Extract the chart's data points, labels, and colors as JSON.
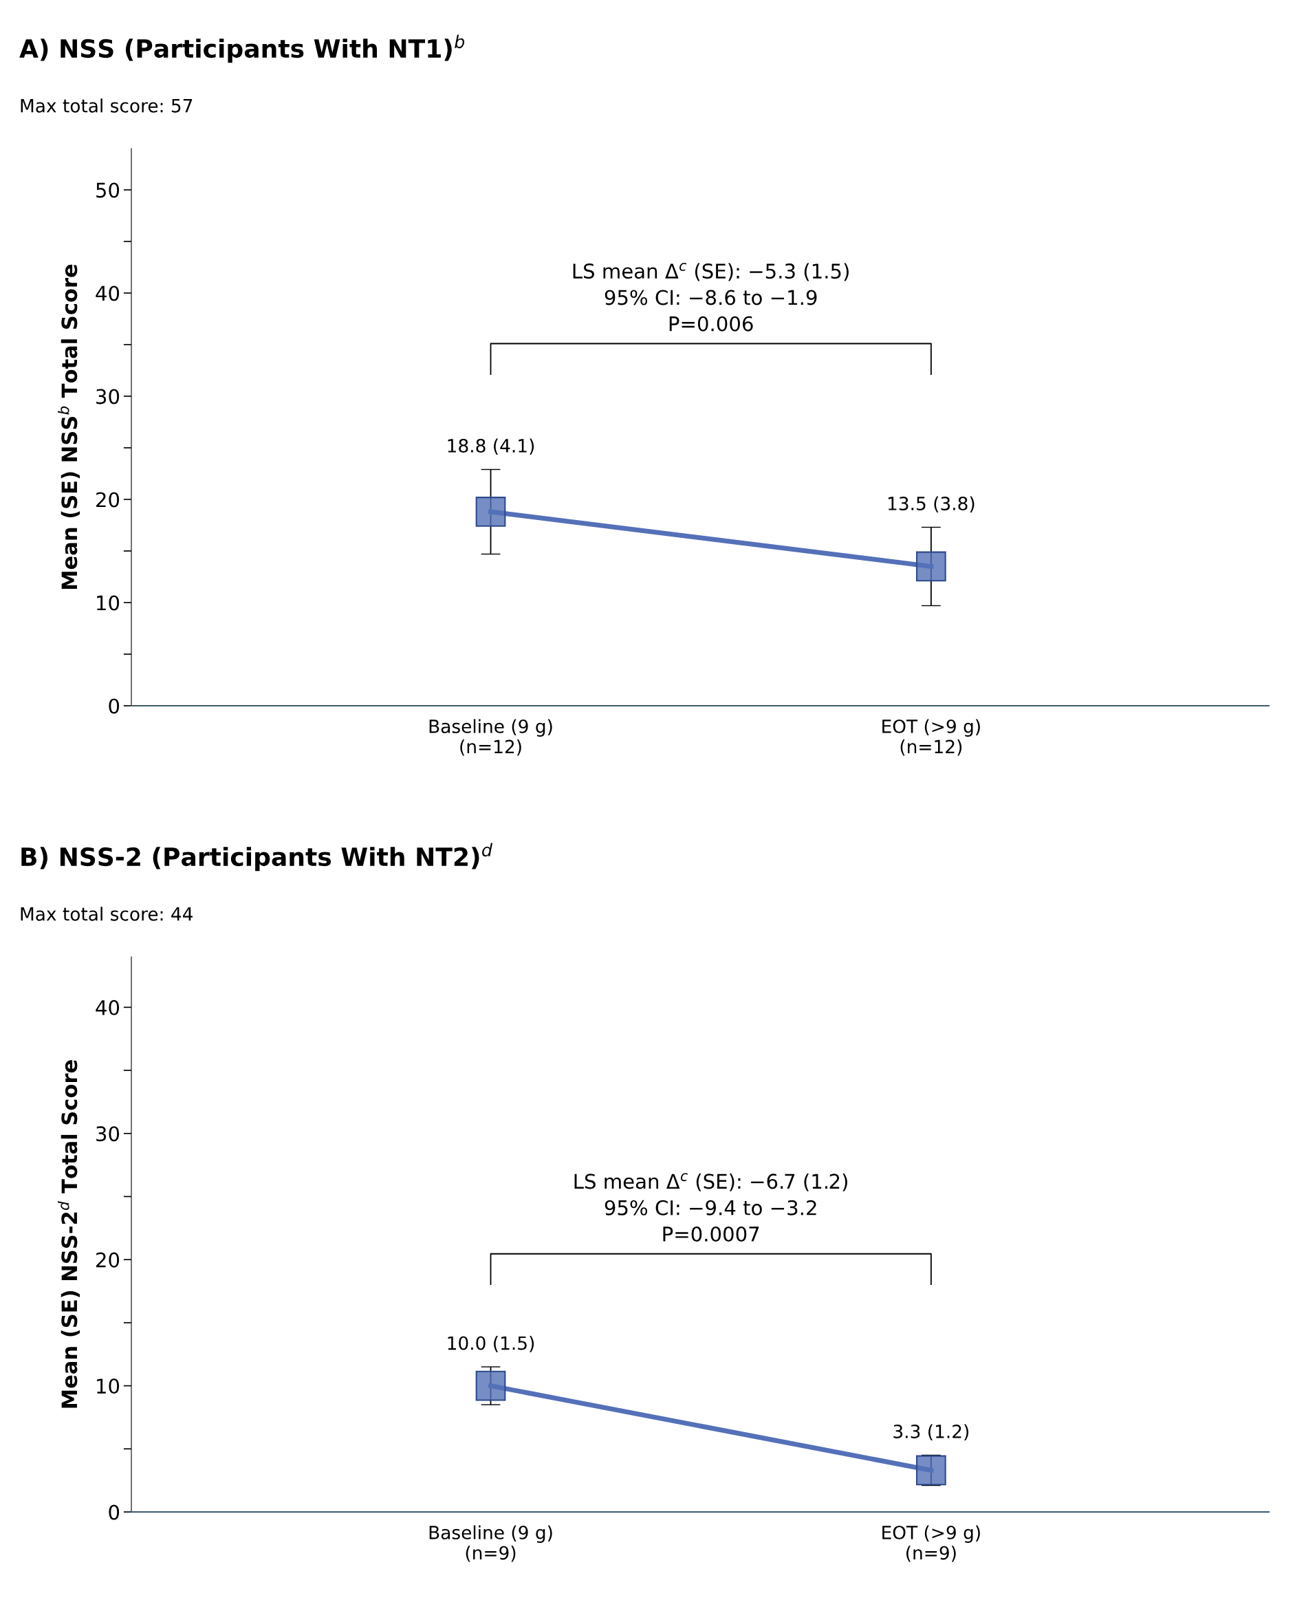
{
  "chart_data": [
    {
      "type": "line",
      "title": "A) NSS (Participants With NT1)$^{b}$",
      "subtitle": "Max total score: 57",
      "ylabel": "Mean (SE) NSS$^{b}$ Total Score",
      "categories": [
        "Baseline (9 g)\n(n=12)",
        "EOT (>9 g)\n(n=12)"
      ],
      "series": [
        {
          "color": "#5470b8",
          "values": [
            18.8,
            13.5
          ],
          "errors": [
            4.1,
            3.8
          ],
          "value_labels": [
            "18.8 (4.1)",
            "13.5 (3.8)"
          ]
        }
      ],
      "annotations": [
        "LS mean Δ$^{c}$ (SE): −5.3 (1.5)\n95% CI: −8.6 to −1.9\nP=0.006"
      ],
      "ylim": [
        0,
        54
      ],
      "yticks": [
        0,
        {
          "value": 5,
          "label": null
        },
        10,
        {
          "value": 15,
          "label": null
        },
        20,
        {
          "value": 25,
          "label": null
        },
        30,
        {
          "value": 35,
          "label": null
        },
        40,
        {
          "value": 45,
          "label": null
        },
        50
      ],
      "marker": "square",
      "line_style": "solid",
      "grid": false,
      "legend": false
    },
    {
      "type": "line",
      "title": "B) NSS-2 (Participants With NT2)$^{d}$",
      "subtitle": "Max total score: 44",
      "ylabel": "Mean (SE) NSS-2$^{d}$ Total Score",
      "categories": [
        "Baseline (9 g)\n(n=9)",
        "EOT (>9 g)\n(n=9)"
      ],
      "series": [
        {
          "color": "#5470b8",
          "values": [
            10.0,
            3.3
          ],
          "errors": [
            1.5,
            1.2
          ],
          "value_labels": [
            "10.0 (1.5)",
            "3.3 (1.2)"
          ]
        }
      ],
      "annotations": [
        "LS mean Δ$^{c}$ (SE): −6.7 (1.2)\n95% CI: −9.4 to −3.2\nP=0.0007"
      ],
      "ylim": [
        0,
        44
      ],
      "yticks": [
        0,
        {
          "value": 5,
          "label": null
        },
        10,
        {
          "value": 15,
          "label": null
        },
        20,
        {
          "value": 25,
          "label": null
        },
        30,
        {
          "value": 35,
          "label": null
        },
        40
      ],
      "marker": "square",
      "line_style": "solid",
      "grid": false,
      "legend": false
    }
  ]
}
